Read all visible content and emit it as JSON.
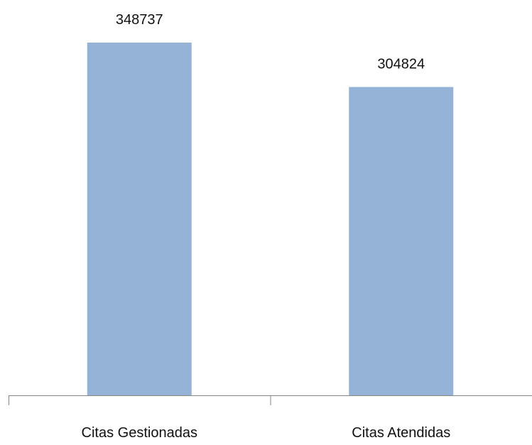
{
  "chart_data": {
    "type": "bar",
    "categories": [
      "Citas Gestionadas",
      "Citas Atendidas"
    ],
    "values": [
      348737,
      304824
    ],
    "data_labels": [
      "348737",
      "304824"
    ],
    "title": "",
    "xlabel": "",
    "ylabel": "",
    "ylim": [
      0,
      400000
    ],
    "grid": false,
    "legend": "none",
    "colors": {
      "bar": "#95b3d7",
      "axis": "#868686",
      "text": "#111111"
    }
  }
}
